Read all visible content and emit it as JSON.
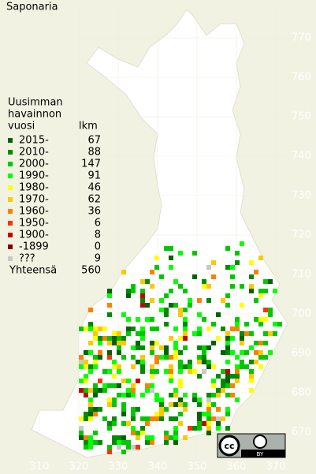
{
  "title": "Saponaria",
  "legend": {
    "heading": [
      "Uusimman",
      "havainnon",
      "vuosi"
    ],
    "count_heading": "lkm",
    "items": [
      {
        "label": "2015-",
        "count": 67,
        "color": "#006400"
      },
      {
        "label": "2010-",
        "count": 88,
        "color": "#008c00"
      },
      {
        "label": "2000-",
        "count": 147,
        "color": "#00c800"
      },
      {
        "label": "1990-",
        "count": 91,
        "color": "#00ff00"
      },
      {
        "label": "1980-",
        "count": 46,
        "color": "#ffff00"
      },
      {
        "label": "1970-",
        "count": 62,
        "color": "#ffc800"
      },
      {
        "label": "1960-",
        "count": 36,
        "color": "#ff8000"
      },
      {
        "label": "1950-",
        "count": 6,
        "color": "#ff3200"
      },
      {
        "label": "1900-",
        "count": 8,
        "color": "#c80000"
      },
      {
        "label": "-1899",
        "count": 0,
        "color": "#800000"
      },
      {
        "label": "???",
        "count": 9,
        "color": "#c8c8c8"
      }
    ],
    "total_label": "Yhteensä",
    "total": 560
  },
  "map": {
    "yticks": [
      770,
      760,
      750,
      740,
      730,
      720,
      710,
      700,
      690,
      680,
      670
    ],
    "xticks": [
      310,
      320,
      330,
      340,
      350,
      360,
      370
    ]
  },
  "badge": {
    "cc": "cc",
    "by": "BY"
  }
}
